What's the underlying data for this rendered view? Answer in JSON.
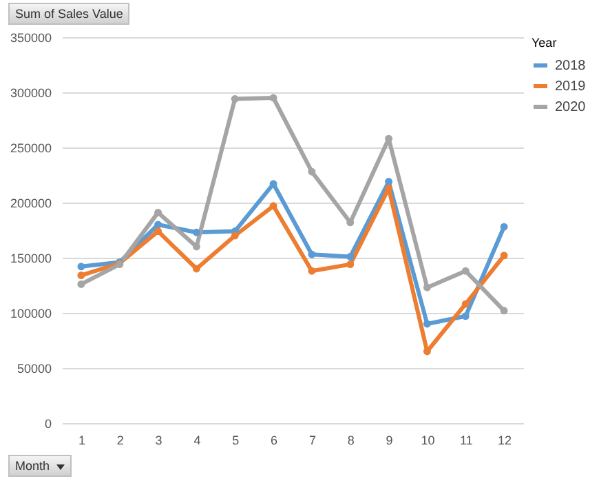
{
  "chart_data": {
    "type": "line",
    "ylabel": "Sum of Sales Value",
    "xlabel": "Month",
    "legend_title": "Year",
    "x": [
      1,
      2,
      3,
      4,
      5,
      6,
      7,
      8,
      9,
      10,
      11,
      12
    ],
    "xlim": [
      0.5,
      12.5
    ],
    "xticks": [
      1,
      2,
      3,
      4,
      5,
      6,
      7,
      8,
      9,
      10,
      11,
      12
    ],
    "series": [
      {
        "name": "2018",
        "color": "#5b9bd5",
        "values": [
          142000,
          146000,
          180000,
          173000,
          174000,
          217000,
          153000,
          151000,
          219000,
          90000,
          97000,
          178000
        ]
      },
      {
        "name": "2019",
        "color": "#ed7d31",
        "values": [
          134000,
          145000,
          174000,
          140000,
          170000,
          197000,
          138000,
          144000,
          213000,
          65000,
          108000,
          152000
        ]
      },
      {
        "name": "2020",
        "color": "#a5a5a5",
        "values": [
          126000,
          144000,
          191000,
          160000,
          294000,
          295000,
          228000,
          182000,
          258000,
          123000,
          138000,
          102000
        ]
      }
    ],
    "ylim": [
      0,
      350000
    ],
    "yticks": [
      0,
      50000,
      100000,
      150000,
      200000,
      250000,
      300000,
      350000
    ],
    "grid": "y",
    "legend": "right",
    "marker": "circle",
    "line_style": "solid"
  }
}
